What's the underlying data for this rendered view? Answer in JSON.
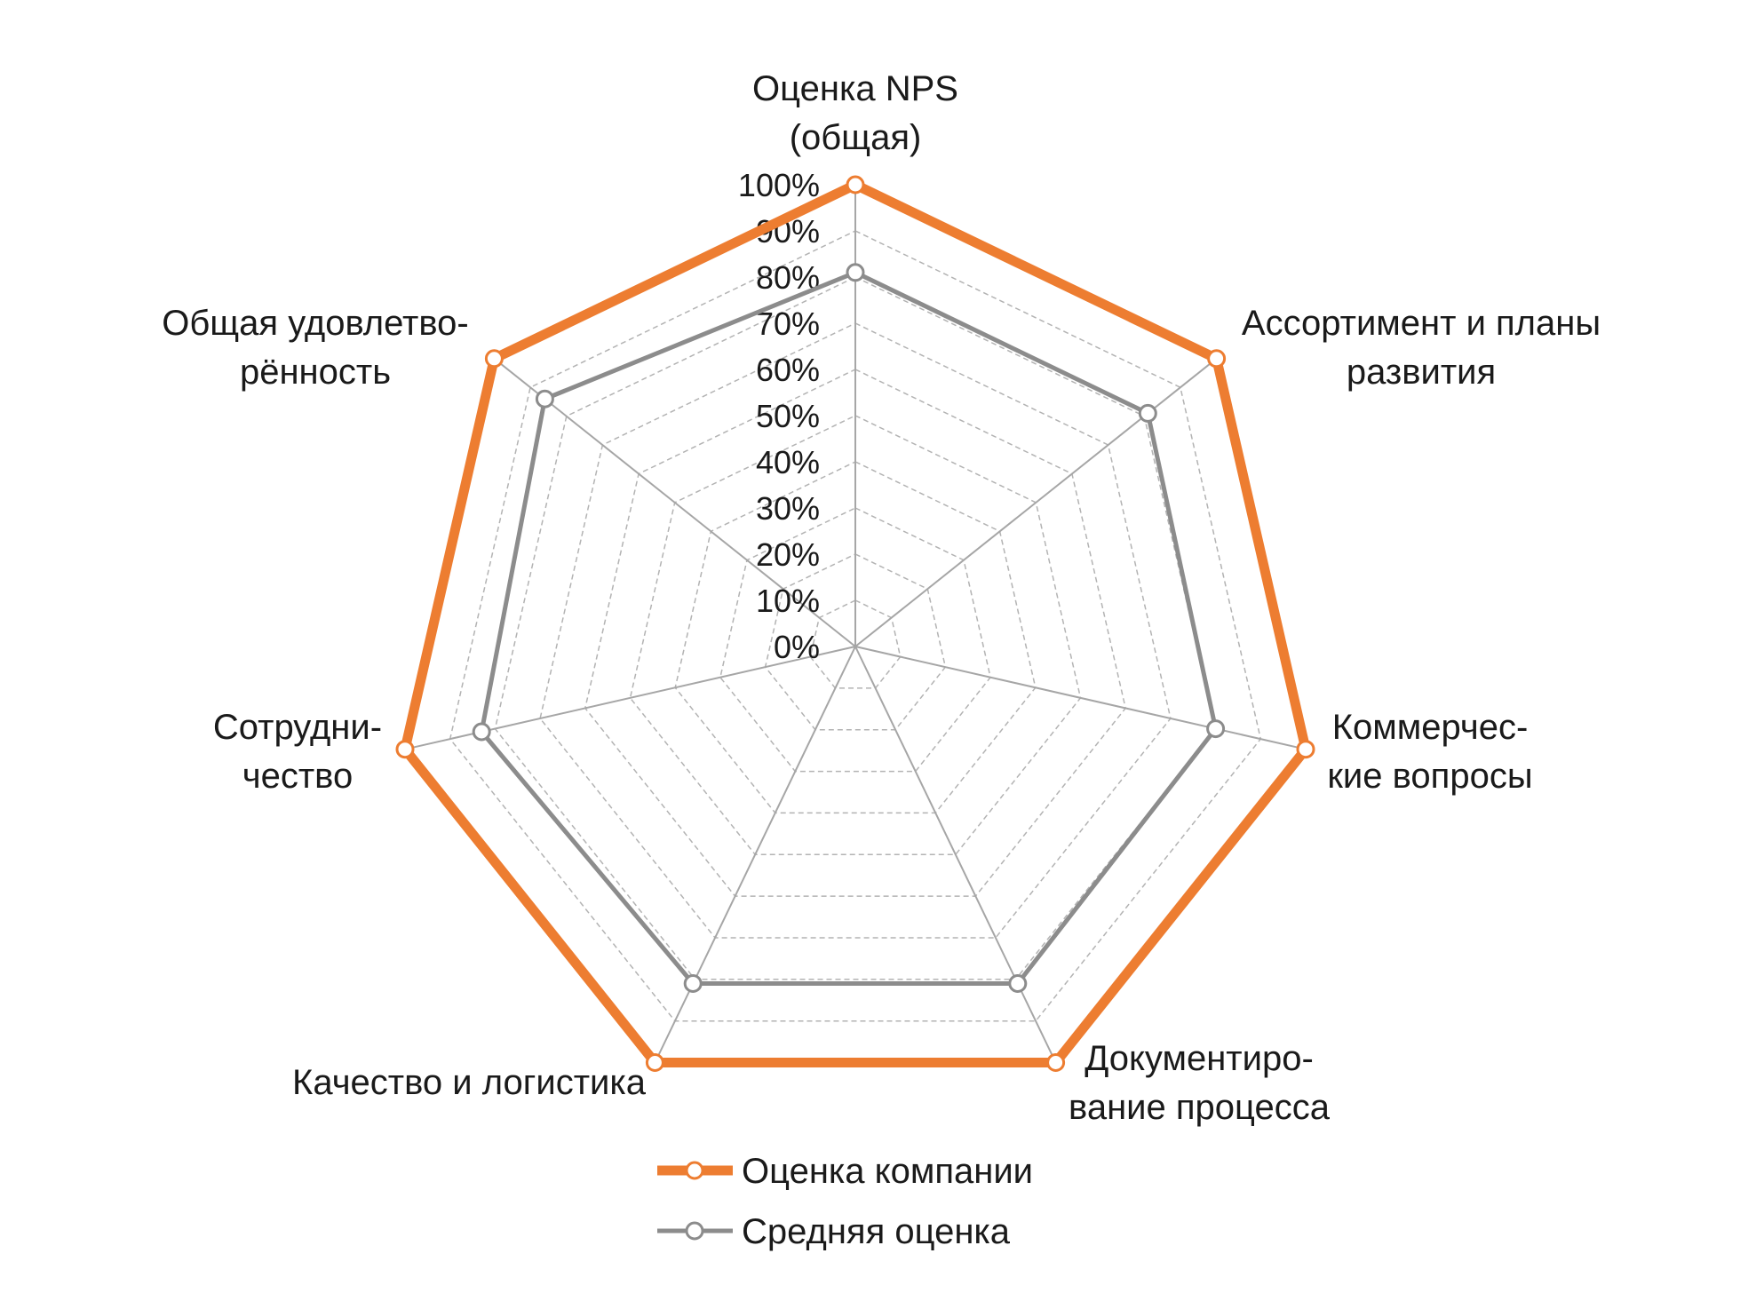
{
  "chart_data": {
    "type": "radar",
    "categories": [
      [
        "Оценка NPS",
        "(общая)"
      ],
      [
        "Ассортимент и планы",
        "развития"
      ],
      [
        "Коммерчес-",
        "кие вопросы"
      ],
      [
        "Документиро-",
        "вание процесса"
      ],
      [
        "Качество и логистика"
      ],
      [
        "Сотрудни-",
        "чество"
      ],
      [
        "Общая удовлетво-",
        "рённость"
      ]
    ],
    "tick_labels": [
      "0%",
      "10%",
      "20%",
      "30%",
      "40%",
      "50%",
      "60%",
      "70%",
      "80%",
      "90%",
      "100%"
    ],
    "rlim": [
      0,
      100
    ],
    "grid": true,
    "legend_position": "bottom",
    "series": [
      {
        "name": "Оценка компании",
        "values": [
          100,
          100,
          100,
          100,
          100,
          100,
          100
        ],
        "color": "#ED7D31"
      },
      {
        "name": "Средняя оценка",
        "values": [
          81,
          81,
          80,
          81,
          81,
          83,
          86
        ],
        "color": "#8C8C8C"
      }
    ]
  }
}
